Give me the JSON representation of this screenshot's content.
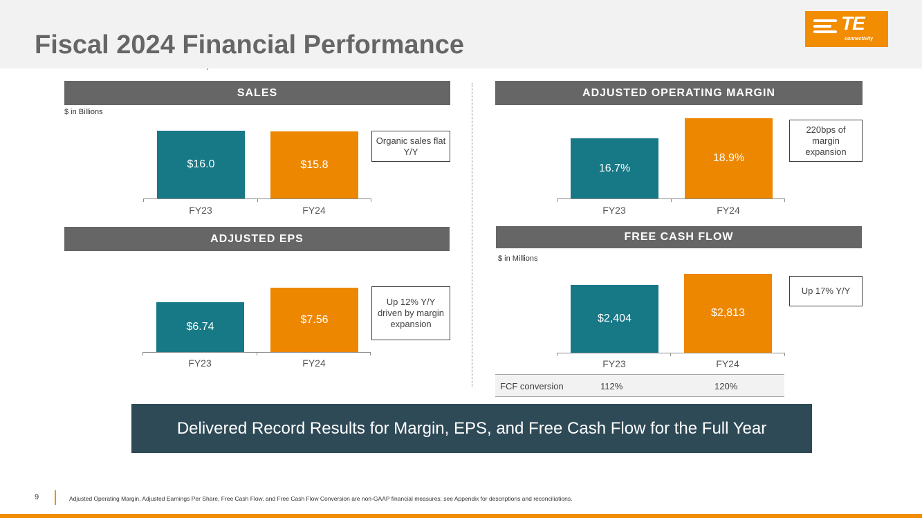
{
  "slide": {
    "title": "Fiscal 2024 Financial Performance",
    "page_number": "9",
    "footnote": "Adjusted Operating Margin, Adjusted Earnings Per Share, Free Cash Flow, and Free Cash Flow Conversion are non-GAAP financial measures; see Appendix for descriptions and reconciliations.",
    "banner": "Delivered Record Results for Margin, EPS, and Free Cash Flow for the Full Year"
  },
  "logo": {
    "text": "TE",
    "subtext": "connectivity"
  },
  "colors": {
    "fy23": "#177886",
    "fy24": "#ee8700",
    "accent": "#f28c00",
    "section_bar": "#666666",
    "banner": "#2f4a57"
  },
  "chart_data": [
    {
      "type": "bar",
      "title": "SALES",
      "unit_note": "$ in Billions",
      "categories": [
        "FY23",
        "FY24"
      ],
      "values": [
        16.0,
        15.8
      ],
      "labels": [
        "$16.0",
        "$15.8"
      ],
      "callout": "Organic sales flat Y/Y"
    },
    {
      "type": "bar",
      "title": "ADJUSTED OPERATING MARGIN",
      "categories": [
        "FY23",
        "FY24"
      ],
      "values": [
        16.7,
        18.9
      ],
      "labels": [
        "16.7%",
        "18.9%"
      ],
      "callout": "220bps of margin expansion"
    },
    {
      "type": "bar",
      "title": "ADJUSTED EPS",
      "categories": [
        "FY23",
        "FY24"
      ],
      "values": [
        6.74,
        7.56
      ],
      "labels": [
        "$6.74",
        "$7.56"
      ],
      "callout": "Up 12% Y/Y driven by margin expansion"
    },
    {
      "type": "bar",
      "title": "FREE CASH FLOW",
      "unit_note": "$ in Millions",
      "categories": [
        "FY23",
        "FY24"
      ],
      "values": [
        2404,
        2813
      ],
      "labels": [
        "$2,404",
        "$2,813"
      ],
      "callout": "Up 17% Y/Y",
      "conversion": {
        "label": "FCF conversion",
        "values": [
          "112%",
          "120%"
        ]
      }
    }
  ]
}
